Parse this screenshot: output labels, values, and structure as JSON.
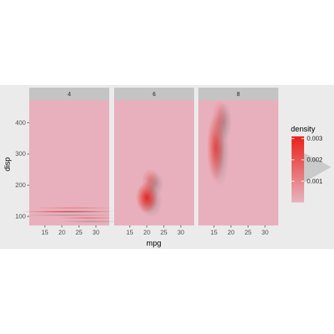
{
  "chart_data": {
    "type": "heatmap",
    "facets": [
      {
        "label": "4",
        "peak": {
          "x": 22,
          "y": 115
        }
      },
      {
        "label": "6",
        "peak": {
          "x": 20,
          "y": 160
        }
      },
      {
        "label": "8",
        "peak": {
          "x": 15.5,
          "y": 320
        }
      }
    ],
    "xlabel": "mpg",
    "ylabel": "disp",
    "x_ticks": [
      15,
      20,
      25,
      30
    ],
    "y_ticks": [
      100,
      200,
      300,
      400
    ],
    "xlim": [
      10.4,
      33.9
    ],
    "ylim": [
      71.1,
      472
    ],
    "legend": {
      "title": "density",
      "ticks": [
        0.001,
        0.002,
        0.003
      ],
      "tick_labels": [
        "0.001",
        "0.002",
        "0.003"
      ],
      "range": [
        0,
        0.0031
      ],
      "position": "right"
    },
    "colors": {
      "low": "#e8b4bf",
      "high": "#e8211a",
      "panel": "#e8b0bc",
      "strip": "#c4c4c4",
      "background": "#ebebeb"
    }
  }
}
